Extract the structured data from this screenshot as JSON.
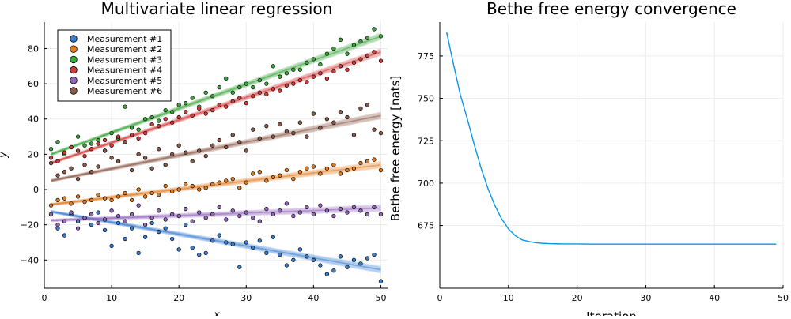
{
  "chart_data": [
    {
      "type": "scatter",
      "title": "Multivariate linear regression",
      "xlabel": "x",
      "ylabel": "y",
      "xlim": [
        0,
        51
      ],
      "ylim": [
        -56,
        95
      ],
      "xticks": [
        0,
        10,
        20,
        30,
        40,
        50
      ],
      "yticks": [
        -40,
        -20,
        0,
        20,
        40,
        60,
        80
      ],
      "grid": true,
      "legend_position": "top-left",
      "series": [
        {
          "name": "Measurement #1",
          "color": "#3b7fd0",
          "fit": [
            -12.5,
            -45.5
          ],
          "x": [
            2,
            3,
            4,
            5,
            6,
            7,
            8,
            9,
            10,
            11,
            12,
            13,
            14,
            15,
            16,
            17,
            18,
            19,
            20,
            21,
            22,
            23,
            24,
            25,
            26,
            27,
            28,
            29,
            30,
            31,
            32,
            33,
            34,
            35,
            36,
            37,
            38,
            39,
            40,
            41,
            42,
            43,
            44,
            45,
            46,
            47,
            48,
            49,
            50
          ],
          "y": [
            -22,
            -26,
            -14,
            -18,
            -16,
            -20,
            -13,
            -23,
            -32,
            -19,
            -28,
            -22,
            -36,
            -27,
            -19,
            -24,
            -22,
            -28,
            -34,
            -20,
            -33,
            -37,
            -36,
            -29,
            -26,
            -30,
            -31,
            -44,
            -30,
            -33,
            -29,
            -36,
            -27,
            -37,
            -43,
            -40,
            -34,
            -38,
            -40,
            -43,
            -48,
            -46,
            -38,
            -44,
            -40,
            -42,
            -39,
            -37,
            -52
          ]
        },
        {
          "name": "Measurement #2",
          "color": "#e37c1e",
          "fit": [
            -8.5,
            14
          ],
          "x": [
            1,
            2,
            3,
            4,
            5,
            6,
            7,
            8,
            9,
            10,
            11,
            12,
            13,
            14,
            15,
            16,
            17,
            18,
            19,
            20,
            21,
            22,
            23,
            24,
            25,
            26,
            27,
            28,
            29,
            30,
            31,
            32,
            33,
            34,
            35,
            36,
            37,
            38,
            39,
            40,
            41,
            42,
            43,
            44,
            45,
            46,
            47,
            48,
            49,
            50
          ],
          "y": [
            -9,
            -6,
            -5,
            -8,
            -4,
            -7,
            -6,
            -3,
            -5,
            -6,
            -4,
            -2,
            -6,
            0,
            -4,
            -2,
            -3,
            2,
            -1,
            0,
            3,
            2,
            0,
            1,
            3,
            4,
            5,
            6,
            1,
            4,
            9,
            10,
            5,
            7,
            8,
            11,
            6,
            10,
            12,
            13,
            9,
            12,
            14,
            9,
            11,
            12,
            15,
            16,
            17,
            11
          ]
        },
        {
          "name": "Measurement #3",
          "color": "#3da63d",
          "fit": [
            20,
            87
          ],
          "x": [
            1,
            2,
            3,
            4,
            5,
            6,
            7,
            8,
            9,
            10,
            11,
            12,
            13,
            14,
            15,
            16,
            17,
            18,
            19,
            20,
            21,
            22,
            23,
            24,
            25,
            26,
            27,
            28,
            29,
            30,
            31,
            32,
            33,
            34,
            35,
            36,
            37,
            38,
            39,
            40,
            41,
            42,
            43,
            44,
            45,
            46,
            47,
            48,
            49,
            50
          ],
          "y": [
            23,
            27,
            20,
            24,
            30,
            25,
            26,
            28,
            22,
            32,
            29,
            47,
            35,
            34,
            40,
            41,
            39,
            45,
            44,
            48,
            49,
            52,
            47,
            55,
            53,
            58,
            63,
            55,
            58,
            60,
            58,
            62,
            60,
            70,
            64,
            66,
            68,
            68,
            72,
            74,
            71,
            77,
            80,
            85,
            77,
            82,
            84,
            86,
            91,
            87
          ]
        },
        {
          "name": "Measurement #4",
          "color": "#d53b3b",
          "fit": [
            15,
            78
          ],
          "x": [
            1,
            2,
            3,
            4,
            5,
            6,
            7,
            8,
            9,
            10,
            11,
            12,
            13,
            14,
            15,
            16,
            17,
            18,
            19,
            20,
            21,
            22,
            23,
            24,
            25,
            26,
            27,
            28,
            29,
            30,
            31,
            32,
            33,
            34,
            35,
            36,
            37,
            38,
            39,
            40,
            41,
            42,
            43,
            44,
            45,
            46,
            47,
            48,
            49,
            50
          ],
          "y": [
            18,
            16,
            21,
            24,
            22,
            19,
            23,
            26,
            28,
            25,
            30,
            27,
            31,
            29,
            32,
            37,
            36,
            40,
            38,
            41,
            44,
            42,
            46,
            43,
            45,
            48,
            47,
            50,
            52,
            49,
            53,
            55,
            54,
            57,
            56,
            59,
            60,
            62,
            61,
            64,
            66,
            63,
            67,
            70,
            68,
            72,
            74,
            76,
            78,
            73
          ]
        },
        {
          "name": "Measurement #5",
          "color": "#9467bd",
          "fit": [
            -17.5,
            -10.5
          ],
          "x": [
            1,
            2,
            3,
            4,
            5,
            6,
            7,
            8,
            9,
            10,
            11,
            12,
            13,
            14,
            15,
            16,
            17,
            18,
            19,
            20,
            21,
            22,
            23,
            24,
            25,
            26,
            27,
            28,
            29,
            30,
            31,
            32,
            33,
            34,
            35,
            36,
            37,
            38,
            39,
            40,
            41,
            42,
            43,
            44,
            45,
            46,
            47,
            48,
            49,
            50
          ],
          "y": [
            -14,
            -20,
            -18,
            -13,
            -22,
            -16,
            -14,
            -19,
            -17,
            -12,
            -15,
            -18,
            -14,
            -9,
            -20,
            -16,
            -12,
            -17,
            -14,
            -15,
            -11,
            -18,
            -13,
            -16,
            -14,
            -10,
            -17,
            -12,
            -15,
            -13,
            -16,
            -18,
            -11,
            -14,
            -12,
            -8,
            -15,
            -13,
            -10,
            -14,
            -9,
            -12,
            -15,
            -11,
            -13,
            -10,
            -12,
            -14,
            -10,
            -14
          ]
        },
        {
          "name": "Measurement #6",
          "color": "#8c5a4a",
          "fit": [
            5,
            42
          ],
          "x": [
            1,
            2,
            3,
            4,
            5,
            6,
            7,
            8,
            9,
            10,
            11,
            12,
            13,
            14,
            15,
            16,
            17,
            18,
            19,
            20,
            21,
            22,
            23,
            24,
            25,
            26,
            27,
            28,
            29,
            30,
            31,
            32,
            33,
            34,
            35,
            36,
            37,
            38,
            39,
            40,
            41,
            42,
            43,
            44,
            45,
            46,
            47,
            48,
            49,
            50
          ],
          "y": [
            15,
            8,
            10,
            12,
            6,
            14,
            10,
            13,
            22,
            18,
            16,
            27,
            11,
            20,
            18,
            12,
            23,
            14,
            20,
            25,
            21,
            16,
            22,
            19,
            25,
            28,
            24,
            31,
            27,
            22,
            34,
            29,
            36,
            30,
            37,
            33,
            32,
            38,
            30,
            43,
            35,
            40,
            38,
            44,
            41,
            31,
            46,
            48,
            34,
            32
          ]
        }
      ]
    },
    {
      "type": "line",
      "title": "Bethe free energy convergence",
      "xlabel": "Iteration",
      "ylabel": "Bethe free energy [nats]",
      "xlim": [
        0,
        50
      ],
      "ylim": [
        638,
        795
      ],
      "xticks": [
        0,
        10,
        20,
        30,
        40,
        50
      ],
      "yticks": [
        675,
        700,
        725,
        750,
        775
      ],
      "grid": true,
      "series": [
        {
          "color": "#0a96e6",
          "x": [
            1,
            2,
            3,
            4,
            5,
            6,
            7,
            8,
            9,
            10,
            11,
            12,
            13,
            14,
            15,
            16,
            17,
            18,
            19,
            20,
            22,
            25,
            30,
            35,
            40,
            45,
            49
          ],
          "y": [
            789,
            770,
            752,
            738,
            723,
            709,
            697,
            687,
            679,
            673,
            669,
            666.5,
            665.5,
            664.8,
            664.5,
            664.3,
            664.2,
            664.1,
            664.1,
            664.1,
            664,
            664,
            664,
            664,
            664,
            664,
            664
          ]
        }
      ]
    }
  ]
}
